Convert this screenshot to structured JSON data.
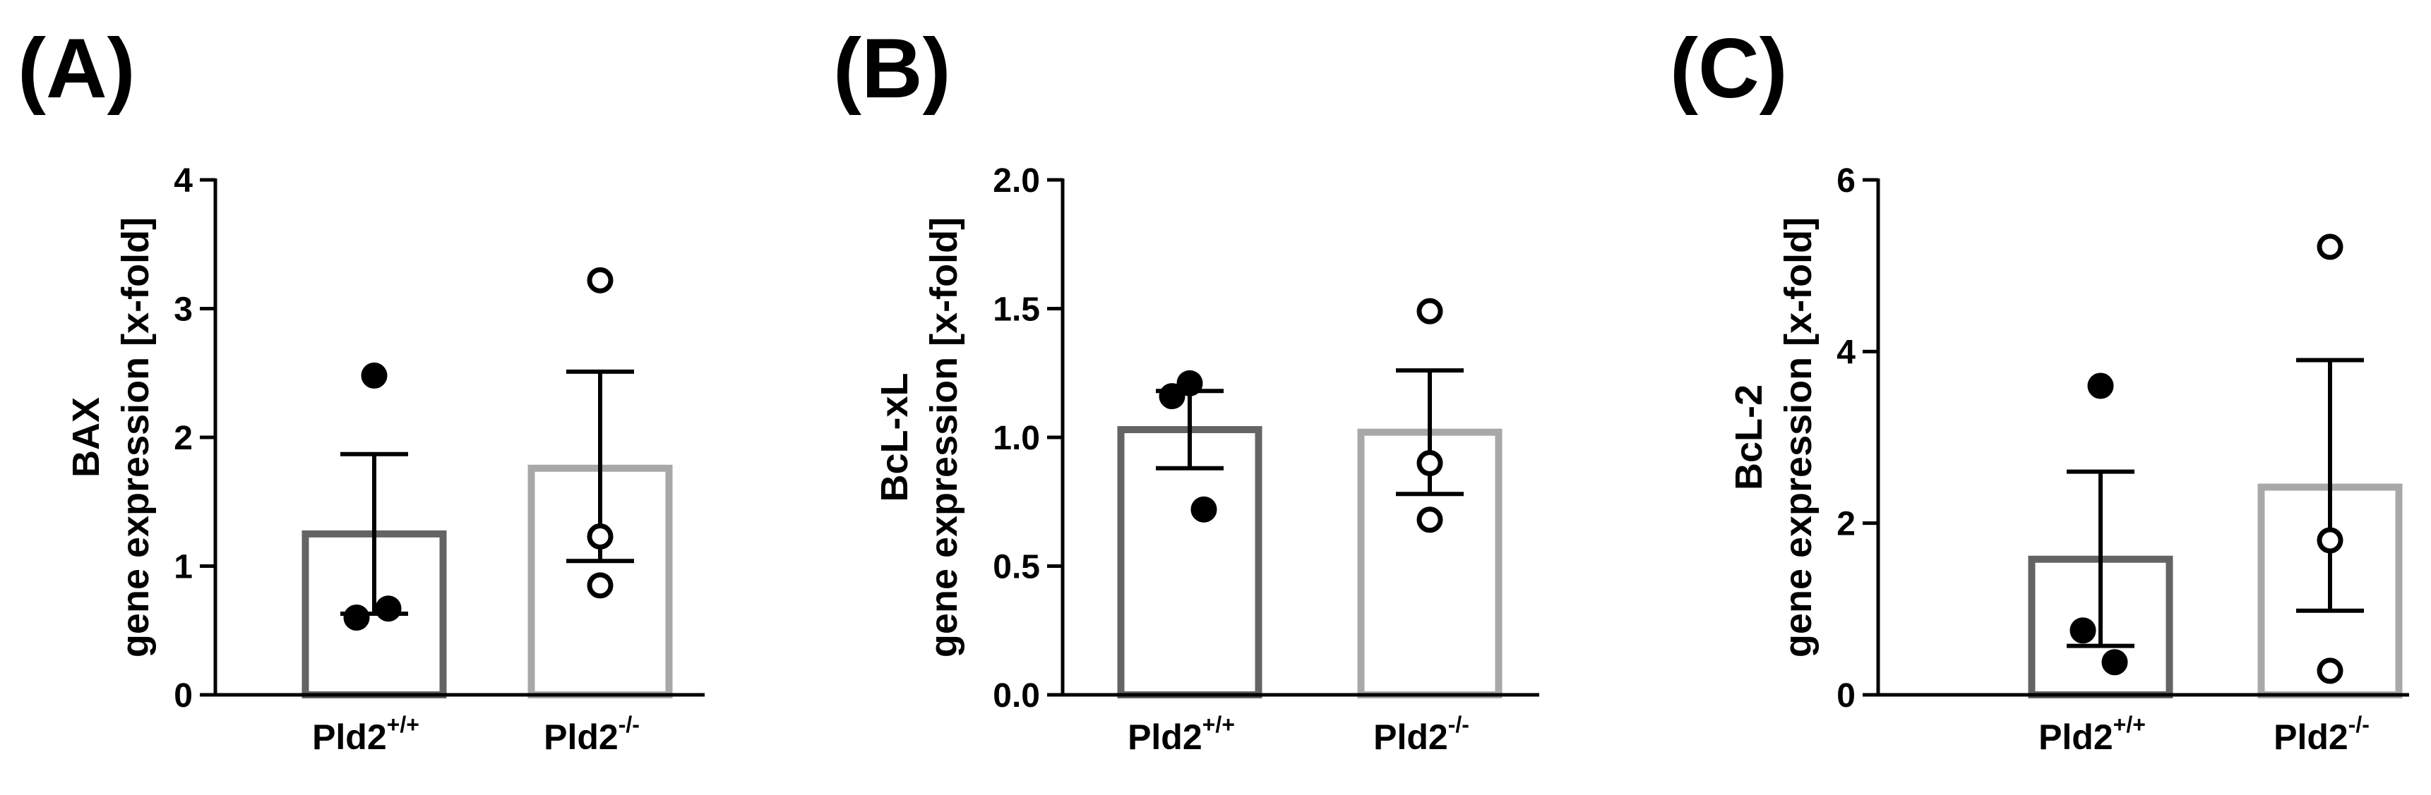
{
  "chart_data": [
    {
      "type": "bar",
      "panel_label": "(A)",
      "ylabel_line1": "BAX",
      "ylabel_line2": "gene expression [x-fold]",
      "ylim": [
        0,
        4
      ],
      "yticks": [
        0,
        1,
        2,
        3,
        4
      ],
      "ytick_labels": [
        "0",
        "1",
        "2",
        "3",
        "4"
      ],
      "categories": [
        {
          "base": "Pld2",
          "sup": "+/+"
        },
        {
          "base": "Pld2",
          "sup": "-/-"
        }
      ],
      "bar_values": [
        1.25,
        1.76
      ],
      "error_low": [
        0.63,
        1.04
      ],
      "error_high": [
        1.87,
        2.51
      ],
      "points": [
        [
          2.48,
          0.6,
          0.67
        ],
        [
          3.22,
          1.23,
          0.85
        ]
      ],
      "bar_colors": [
        "#646464",
        "#a8a8a8"
      ],
      "point_fill": [
        "#000000",
        "#ffffff"
      ],
      "grid": false
    },
    {
      "type": "bar",
      "panel_label": "(B)",
      "ylabel_line1": "BcL-xL",
      "ylabel_line2": "gene expression [x-fold]",
      "ylim": [
        0,
        2
      ],
      "yticks": [
        0,
        0.5,
        1,
        1.5,
        2
      ],
      "ytick_labels": [
        "0.0",
        "0.5",
        "1.0",
        "1.5",
        "2.0"
      ],
      "categories": [
        {
          "base": "Pld2",
          "sup": "+/+"
        },
        {
          "base": "Pld2",
          "sup": "-/-"
        }
      ],
      "bar_values": [
        1.03,
        1.02
      ],
      "error_low": [
        0.88,
        0.78
      ],
      "error_high": [
        1.18,
        1.26
      ],
      "points": [
        [
          1.21,
          1.16,
          0.72
        ],
        [
          1.49,
          0.9,
          0.68
        ]
      ],
      "bar_colors": [
        "#646464",
        "#a8a8a8"
      ],
      "point_fill": [
        "#000000",
        "#ffffff"
      ],
      "grid": false
    },
    {
      "type": "bar",
      "panel_label": "(C)",
      "ylabel_line1": "BcL-2",
      "ylabel_line2": "gene expression [x-fold]",
      "ylim": [
        0,
        6
      ],
      "yticks": [
        0,
        2,
        4,
        6
      ],
      "ytick_labels": [
        "0",
        "2",
        "4",
        "6"
      ],
      "categories": [
        {
          "base": "Pld2",
          "sup": "+/+"
        },
        {
          "base": "Pld2",
          "sup": "-/-"
        }
      ],
      "bar_values": [
        1.58,
        2.42
      ],
      "error_low": [
        0.57,
        0.98
      ],
      "error_high": [
        2.6,
        3.9
      ],
      "points": [
        [
          3.6,
          0.75,
          0.38
        ],
        [
          5.22,
          1.8,
          0.28
        ]
      ],
      "bar_colors": [
        "#646464",
        "#a8a8a8"
      ],
      "point_fill": [
        "#000000",
        "#ffffff"
      ],
      "grid": false
    }
  ]
}
